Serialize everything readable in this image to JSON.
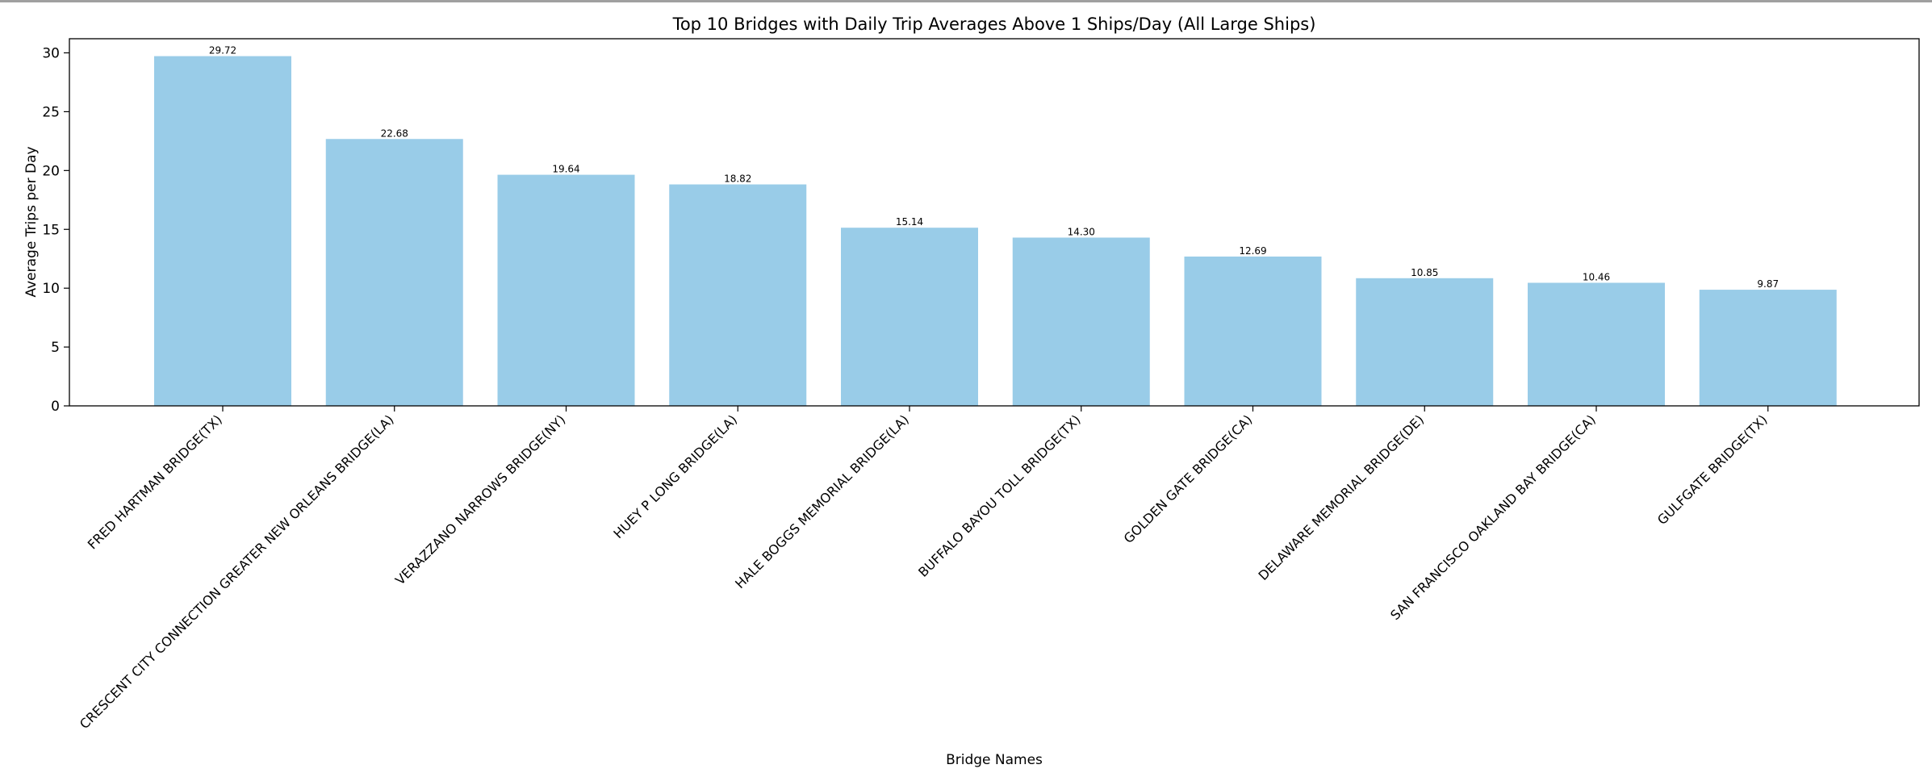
{
  "chart_data": {
    "type": "bar",
    "title": "Top 10 Bridges with Daily Trip Averages Above 1 Ships/Day (All Large Ships)",
    "xlabel": "Bridge Names",
    "ylabel": "Average Trips per Day",
    "categories": [
      "FRED HARTMAN BRIDGE(TX)",
      "CRESCENT CITY CONNECTION GREATER NEW ORLEANS BRIDGE(LA)",
      "VERAZZANO NARROWS BRIDGE(NY)",
      "HUEY P LONG BRIDGE(LA)",
      "HALE BOGGS MEMORIAL BRIDGE(LA)",
      "BUFFALO BAYOU TOLL BRIDGE(TX)",
      "GOLDEN GATE BRIDGE(CA)",
      "DELAWARE MEMORIAL BRIDGE(DE)",
      "SAN FRANCISCO OAKLAND BAY BRIDGE(CA)",
      "GULFGATE BRIDGE(TX)"
    ],
    "values": [
      29.72,
      22.68,
      19.64,
      18.82,
      15.14,
      14.3,
      12.69,
      10.85,
      10.46,
      9.87
    ],
    "data_labels": [
      "29.72",
      "22.68",
      "19.64",
      "18.82",
      "15.14",
      "14.30",
      "12.69",
      "10.85",
      "10.46",
      "9.87"
    ],
    "yticks": [
      0,
      5,
      10,
      15,
      20,
      25,
      30
    ],
    "ylim": [
      0,
      31.2
    ],
    "grid": false,
    "bar_color": "#99cce8"
  }
}
